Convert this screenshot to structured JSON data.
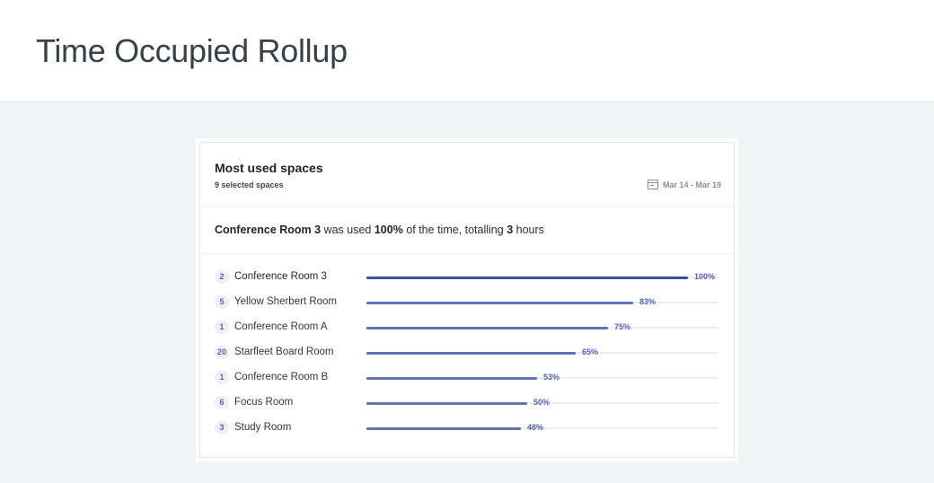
{
  "page": {
    "title": "Time Occupied Rollup"
  },
  "card": {
    "title": "Most used spaces",
    "subtitle": "9 selected spaces",
    "date_range": "Mar 14 - Mar 19",
    "date_icon": "calendar-icon"
  },
  "summary": {
    "space": "Conference Room 3",
    "was_used": " was used ",
    "percent": "100%",
    "of_time": " of the time, totalling ",
    "hours": "3",
    "hours_suffix": " hours"
  },
  "chart_data": {
    "type": "bar",
    "title": "Most used spaces",
    "categories": [
      "Conference Room 3",
      "Yellow Sherbert Room",
      "Conference Room A",
      "Starfleet Board Room",
      "Conference Room B",
      "Focus Room",
      "Study Room"
    ],
    "badges": [
      "2",
      "5",
      "1",
      "20",
      "1",
      "6",
      "3"
    ],
    "values": [
      100,
      83,
      75,
      65,
      53,
      50,
      48
    ],
    "value_labels": [
      "100%",
      "83%",
      "75%",
      "65%",
      "53%",
      "50%",
      "48%"
    ],
    "xlim": [
      0,
      100
    ],
    "xlabel": "",
    "ylabel": "",
    "colors": {
      "top": "#3f4fa8",
      "rest": "#6471bb",
      "track": "#eceef0"
    }
  }
}
